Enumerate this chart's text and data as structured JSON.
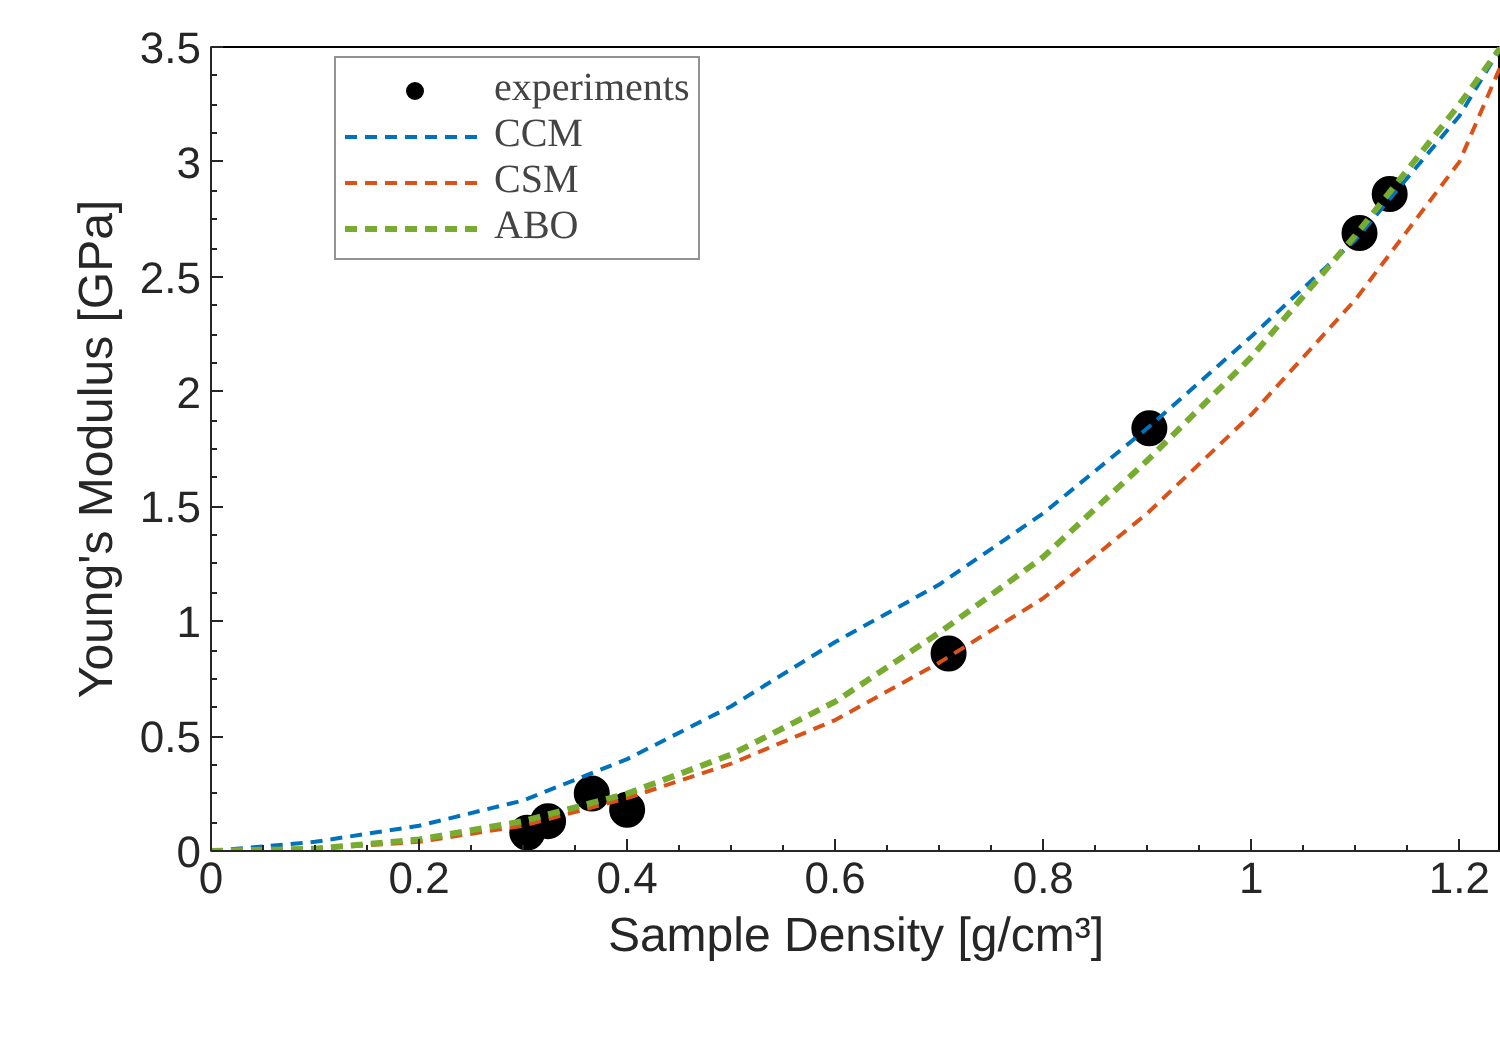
{
  "chart_data": {
    "type": "line",
    "xlabel": "Sample Density [g/cm³]",
    "ylabel": "Young's Modulus [GPa]",
    "xlim": [
      0,
      1.24
    ],
    "ylim": [
      0,
      3.5
    ],
    "xticks": [
      0,
      0.2,
      0.4,
      0.6,
      0.8,
      1,
      1.2
    ],
    "yticks": [
      0,
      0.5,
      1,
      1.5,
      2,
      2.5,
      3,
      3.5
    ],
    "grid": false,
    "legend": "top left",
    "line_style": "dashed",
    "series": [
      {
        "name": "experiments",
        "type": "scatter",
        "marker": "circle",
        "color": "#000000",
        "x": [
          0.304,
          0.324,
          0.366,
          0.4,
          0.709,
          0.902,
          1.104,
          1.133
        ],
        "values": [
          0.08,
          0.13,
          0.25,
          0.18,
          0.86,
          1.84,
          2.69,
          2.86
        ]
      },
      {
        "name": "CCM",
        "color": "#0072bd",
        "x": [
          0,
          0.1,
          0.2,
          0.3,
          0.4,
          0.5,
          0.6,
          0.7,
          0.8,
          0.9,
          1.0,
          1.1,
          1.2,
          1.24
        ],
        "values": [
          0,
          0.04,
          0.11,
          0.22,
          0.4,
          0.63,
          0.91,
          1.16,
          1.47,
          1.84,
          2.24,
          2.66,
          3.2,
          3.5
        ]
      },
      {
        "name": "CSM",
        "color": "#d95319",
        "x": [
          0,
          0.1,
          0.2,
          0.3,
          0.4,
          0.5,
          0.6,
          0.7,
          0.8,
          0.9,
          1.0,
          1.1,
          1.2,
          1.24
        ],
        "values": [
          0,
          0.01,
          0.04,
          0.11,
          0.23,
          0.38,
          0.57,
          0.82,
          1.1,
          1.47,
          1.9,
          2.4,
          3.0,
          3.42
        ]
      },
      {
        "name": "ABO",
        "color": "#77ac30",
        "x": [
          0,
          0.1,
          0.2,
          0.3,
          0.4,
          0.5,
          0.6,
          0.7,
          0.8,
          0.9,
          1.0,
          1.1,
          1.2,
          1.24
        ],
        "values": [
          0,
          0.01,
          0.05,
          0.13,
          0.25,
          0.42,
          0.65,
          0.95,
          1.28,
          1.7,
          2.15,
          2.68,
          3.25,
          3.5
        ]
      }
    ]
  }
}
